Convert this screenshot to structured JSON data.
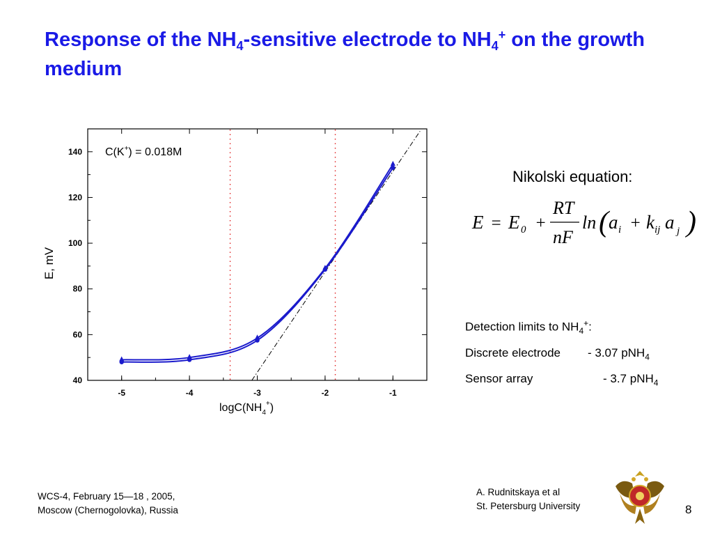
{
  "slide": {
    "title_part1": "Response of the NH",
    "title_sub1": "4",
    "title_part2": "-sensitive electrode to NH",
    "title_sub2": "4",
    "title_sup2": "+",
    "title_part3": " on the growth medium"
  },
  "equation": {
    "heading": "Nikolski equation:",
    "lhs": "E",
    "equals": "=",
    "e0": "E",
    "e0_sub": "0",
    "plus1": "+",
    "numerator": "RT",
    "denominator": "nF",
    "ln": "ln",
    "a_i": "a",
    "i_sub": "i",
    "plus2": "+",
    "k": "k",
    "k_sub": "ij",
    "a_j": "a",
    "j_sub": "j"
  },
  "detection": {
    "heading_text": "Detection limits to NH",
    "heading_sub": "4",
    "heading_sup": "+",
    "heading_tail": ":",
    "row1_label": "Discrete electrode",
    "row1_value": "- 3.07 pNH",
    "row1_sub": "4",
    "row2_label": "Sensor array",
    "row2_value": "- 3.7 pNH",
    "row2_sub": "4"
  },
  "footer": {
    "left_line1": "WCS-4, February 15—18 , 2005,",
    "left_line2": "Moscow (Chernogolovka), Russia",
    "right_line1": "A. Rudnitskaya et al",
    "right_line2": "St. Petersburg University",
    "page_number": "8"
  },
  "colors": {
    "title": "#1a1ae6",
    "series": "#1a1acc",
    "limit_lines": "#e02020",
    "nernst_line": "#000000"
  },
  "chart_data": {
    "type": "line",
    "annotation_text": "C(K",
    "annotation_sup": "+",
    "annotation_tail": ") = 0.018M",
    "xlabel": "logC(NH",
    "xlabel_sub": "4",
    "xlabel_sup": "+",
    "xlabel_tail": ")",
    "ylabel": "E, mV",
    "xlim": [
      -5.5,
      -0.5
    ],
    "ylim": [
      40,
      150
    ],
    "xticks": [
      -5,
      -4,
      -3,
      -2,
      -1
    ],
    "xtick_labels": [
      "-5",
      "-4",
      "-3",
      "-2",
      "-1"
    ],
    "yticks": [
      40,
      60,
      80,
      100,
      120,
      140
    ],
    "ytick_labels": [
      "40",
      "60",
      "80",
      "100",
      "120",
      "140"
    ],
    "series": [
      {
        "x": [
          -5,
          -4,
          -3,
          -2,
          -1
        ],
        "y": [
          49,
          50,
          58.5,
          89,
          134.5
        ]
      },
      {
        "x": [
          -5,
          -4,
          -3,
          -2,
          -1
        ],
        "y": [
          48,
          49,
          57.5,
          88.5,
          133
        ]
      }
    ],
    "nernst_line": {
      "x": [
        -3.08,
        -0.6
      ],
      "y": [
        40,
        149
      ]
    },
    "limit_lines_x": [
      -3.4,
      -1.85
    ],
    "grid": false
  }
}
